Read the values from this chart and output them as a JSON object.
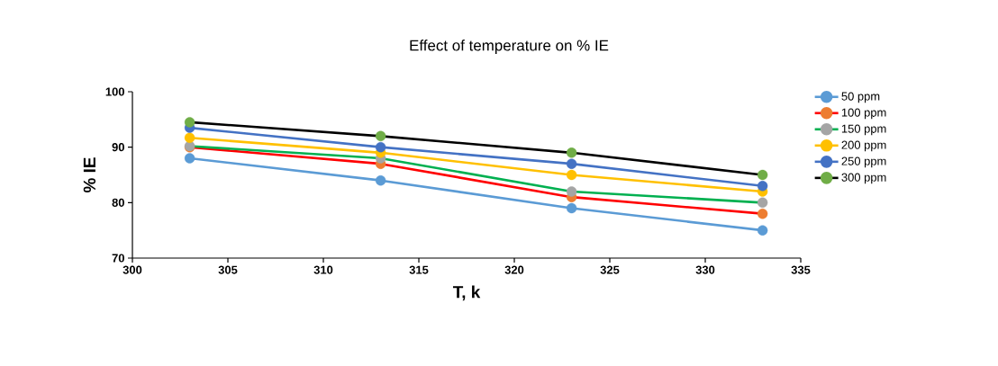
{
  "chart_data": {
    "type": "line",
    "title": "Effect of temperature on % IE",
    "xlabel": "T, k",
    "ylabel": "% IE",
    "x": [
      303,
      313,
      323,
      333
    ],
    "series": [
      {
        "name": "50 ppm",
        "color": "#5b9bd5",
        "colors": [
          "#5b9bd5",
          "#5b9bd5",
          "#5b9bd5",
          "#5b9bd5"
        ],
        "values": [
          88,
          84,
          79,
          75
        ]
      },
      {
        "name": "100 ppm",
        "color": "#ff0000",
        "colors": [
          "#ed7d31",
          "#ed7d31",
          "#ed7d31",
          "#ed7d31"
        ],
        "values": [
          90,
          87,
          81,
          78
        ]
      },
      {
        "name": "150 ppm",
        "color": "#00b050",
        "colors": [
          "#a5a5a5",
          "#a5a5a5",
          "#a5a5a5",
          "#a5a5a5"
        ],
        "values": [
          90.2,
          88,
          82,
          80
        ]
      },
      {
        "name": "200 ppm",
        "color": "#ffc000",
        "colors": [
          "#ffc000",
          "#ffc000",
          "#ffc000",
          "#ffc000"
        ],
        "values": [
          91.7,
          89,
          85,
          82
        ]
      },
      {
        "name": "250 ppm",
        "color": "#4472c4",
        "colors": [
          "#4472c4",
          "#4472c4",
          "#4472c4",
          "#4472c4"
        ],
        "values": [
          93.5,
          90,
          87,
          83
        ]
      },
      {
        "name": "300 ppm",
        "color": "#000000",
        "colors": [
          "#70ad47",
          "#70ad47",
          "#70ad47",
          "#70ad47"
        ],
        "values": [
          94.5,
          92,
          89,
          85
        ]
      }
    ],
    "xlim": [
      300,
      335
    ],
    "xticks": [
      300,
      305,
      310,
      315,
      320,
      325,
      330,
      335
    ],
    "ylim": [
      70,
      100
    ],
    "yticks": [
      70,
      80,
      90,
      100
    ],
    "grid": false,
    "legend": "right",
    "marker": "circle",
    "line_style": "solid"
  }
}
